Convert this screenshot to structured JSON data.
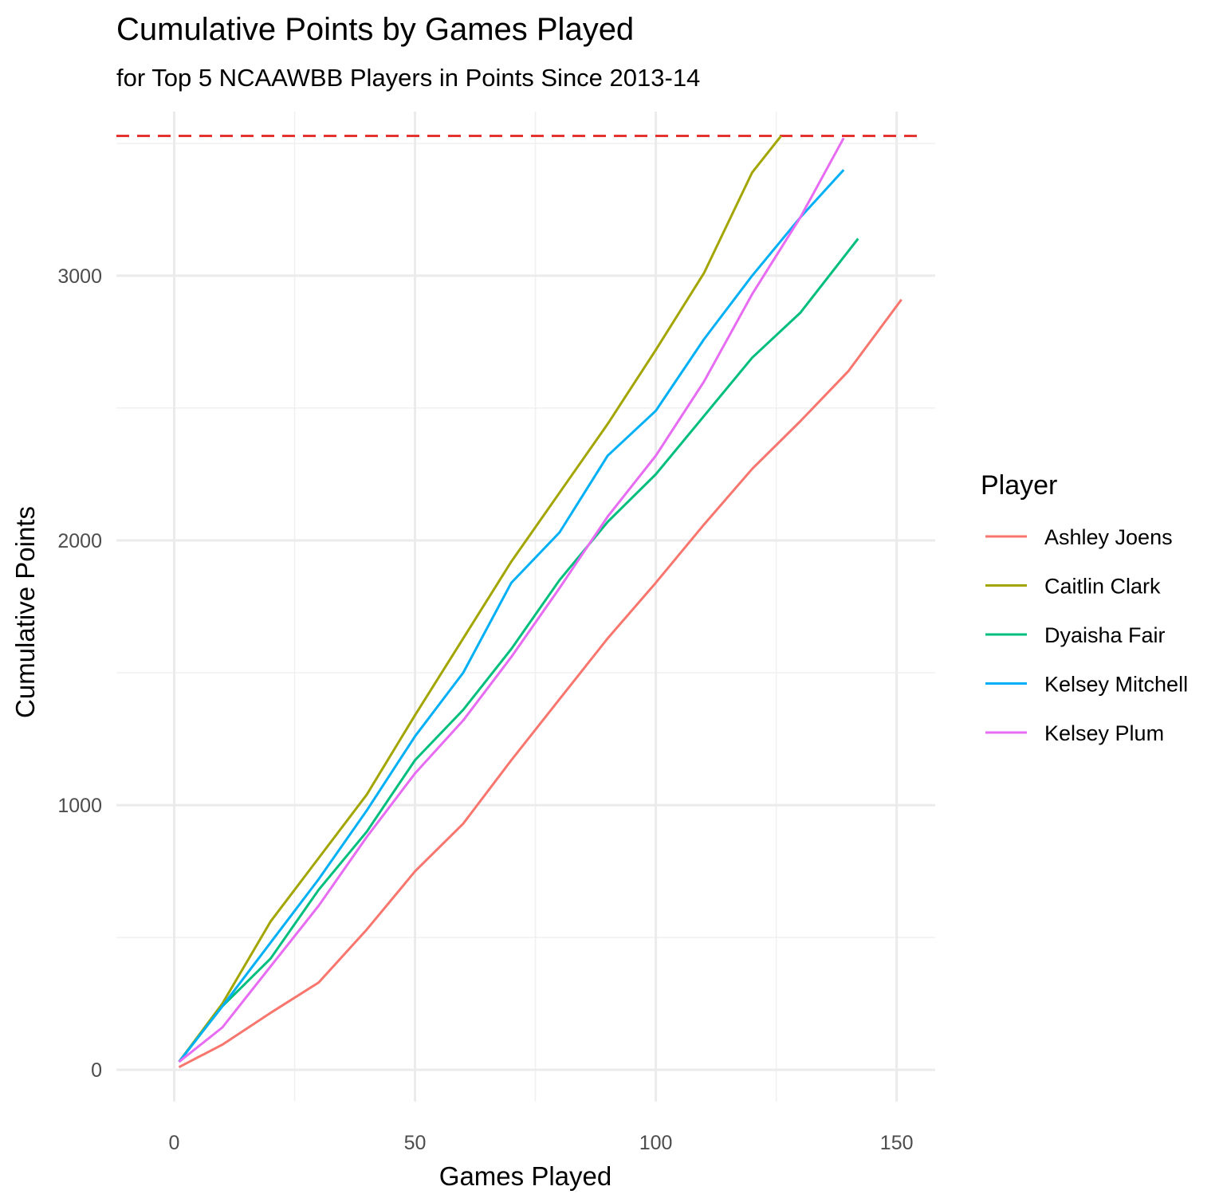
{
  "chart_data": {
    "type": "line",
    "title": "Cumulative Points by Games Played",
    "subtitle": "for Top 5 NCAAWBB Players in Points Since 2013-14",
    "xlabel": "Games Played",
    "ylabel": "Cumulative Points",
    "xlim": [
      -12,
      158
    ],
    "ylim": [
      -120,
      3620
    ],
    "x_ticks": [
      0,
      50,
      100,
      150
    ],
    "y_ticks": [
      0,
      1000,
      2000,
      3000
    ],
    "x_tick_labels": [
      "0",
      "50",
      "100",
      "150"
    ],
    "y_tick_labels": [
      "0",
      "1000",
      "2000",
      "3000"
    ],
    "grid": true,
    "legend": {
      "title": "Player",
      "position": "right"
    },
    "reference_line": {
      "y": 3528,
      "style": "dashed",
      "color": "#e3342f"
    },
    "series": [
      {
        "name": "Ashley Joens",
        "color": "#f8766d",
        "x": [
          1,
          10,
          20,
          30,
          40,
          50,
          60,
          70,
          80,
          90,
          100,
          110,
          120,
          130,
          140,
          151
        ],
        "values": [
          10,
          95,
          215,
          330,
          530,
          750,
          930,
          1170,
          1400,
          1630,
          1840,
          2060,
          2270,
          2450,
          2640,
          2910
        ]
      },
      {
        "name": "Caitlin Clark",
        "color": "#a3a500",
        "x": [
          1,
          10,
          20,
          30,
          40,
          50,
          60,
          70,
          80,
          90,
          100,
          110,
          120,
          126
        ],
        "values": [
          30,
          250,
          560,
          800,
          1040,
          1340,
          1630,
          1920,
          2180,
          2440,
          2720,
          3010,
          3390,
          3528
        ]
      },
      {
        "name": "Dyaisha Fair",
        "color": "#00bf7d",
        "x": [
          1,
          10,
          20,
          30,
          40,
          50,
          60,
          70,
          80,
          90,
          100,
          110,
          120,
          130,
          142
        ],
        "values": [
          30,
          240,
          420,
          680,
          900,
          1170,
          1360,
          1590,
          1850,
          2070,
          2250,
          2470,
          2690,
          2860,
          3140
        ]
      },
      {
        "name": "Kelsey Mitchell",
        "color": "#00b0f6",
        "x": [
          1,
          10,
          20,
          30,
          40,
          50,
          60,
          70,
          80,
          90,
          100,
          110,
          120,
          130,
          139
        ],
        "values": [
          30,
          240,
          480,
          720,
          980,
          1260,
          1500,
          1840,
          2030,
          2320,
          2490,
          2760,
          3000,
          3220,
          3400
        ]
      },
      {
        "name": "Kelsey Plum",
        "color": "#e76bf3",
        "x": [
          1,
          10,
          20,
          30,
          40,
          50,
          60,
          70,
          80,
          90,
          100,
          110,
          120,
          130,
          139
        ],
        "values": [
          30,
          160,
          390,
          620,
          880,
          1120,
          1320,
          1560,
          1820,
          2090,
          2320,
          2600,
          2930,
          3220,
          3520
        ]
      }
    ]
  }
}
